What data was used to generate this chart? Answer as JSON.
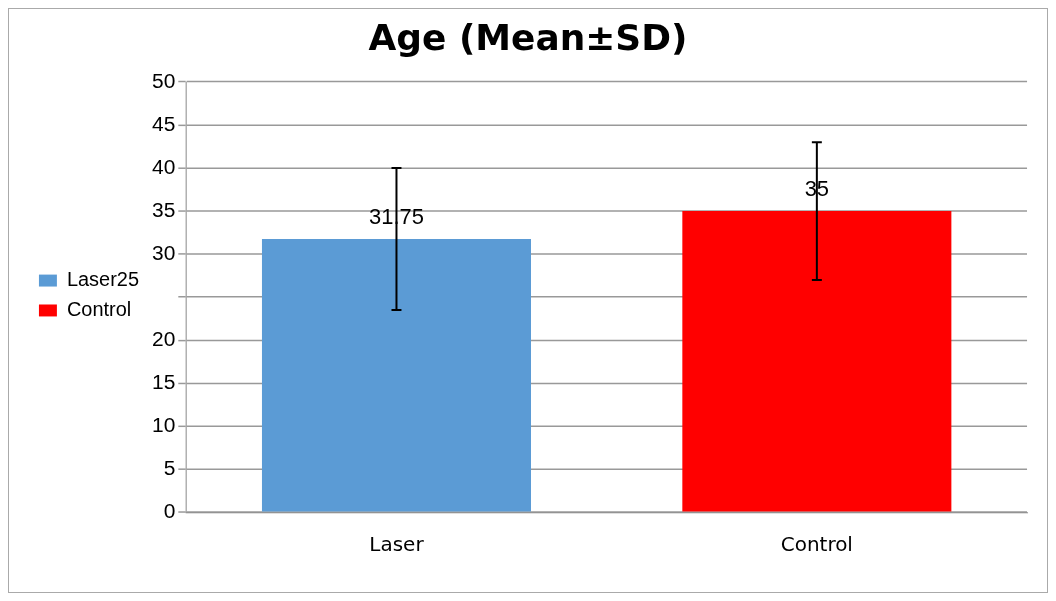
{
  "chart_data": {
    "type": "bar",
    "title": "Age (Mean±SD)",
    "categories": [
      "Laser",
      "Control"
    ],
    "series": [
      {
        "name": "Laser25",
        "color": "#5b9bd5",
        "values": [
          31.75,
          null
        ],
        "errors": [
          8.25,
          null
        ]
      },
      {
        "name": "Control",
        "color": "#ff0000",
        "values": [
          null,
          35
        ],
        "errors": [
          null,
          8
        ]
      }
    ],
    "ylim": [
      0,
      50
    ],
    "yticks": [
      0,
      5,
      10,
      15,
      20,
      {
        "value": 25,
        "label": null
      },
      30,
      35,
      40,
      45,
      50
    ],
    "grid": "y",
    "legend": "left",
    "data_labels": true
  }
}
